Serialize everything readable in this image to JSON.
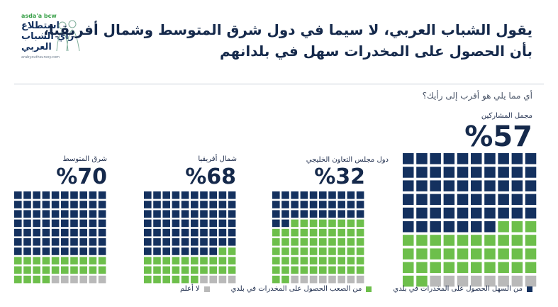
{
  "logo": {
    "brand": "asda'a bcw",
    "line1": "استطلاع",
    "line2": "رأي الشباب",
    "line3": "العربي",
    "url": "arabyouthsurvey.com"
  },
  "title_lines": [
    "يقول الشباب العربي، لا سيما في دول شرق المتوسط وشمال أفريقيا،",
    "بأن الحصول على المخدرات سهل في بلدانهم"
  ],
  "question": "أي مما يلي هو أقرب إلى رأيك؟",
  "colors": {
    "easy": "#14315f",
    "hard": "#6dbf4b",
    "dont_know": "#b9b9b9"
  },
  "legend": [
    {
      "label": "من السهل الحصول على المخدرات في بلدي",
      "color": "#14315f"
    },
    {
      "label": "من الصعب الحصول على المخدرات في بلدي",
      "color": "#6dbf4b"
    },
    {
      "label": "لا أعلم",
      "color": "#b9b9b9"
    }
  ],
  "chart_data": {
    "type": "waffle",
    "series_names": [
      "من السهل الحصول على المخدرات في بلدي",
      "من الصعب الحصول على المخدرات في بلدي",
      "لا أعلم"
    ],
    "panels": [
      {
        "label": "مجمل المشاركين",
        "value_text": "%57",
        "easy": 57,
        "hard": 35,
        "dont_know": 8
      },
      {
        "label": "دول مجلس التعاون الخليجي",
        "value_text": "%32",
        "easy": 32,
        "hard": 60,
        "dont_know": 8
      },
      {
        "label": "شمال أفريقيا",
        "value_text": "%68",
        "easy": 68,
        "hard": 28,
        "dont_know": 4
      },
      {
        "label": "شرق المتوسط",
        "value_text": "%70",
        "easy": 70,
        "hard": 24,
        "dont_know": 6
      }
    ]
  }
}
